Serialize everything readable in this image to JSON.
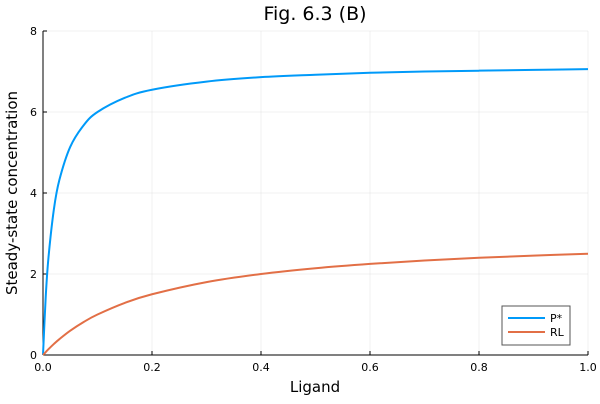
{
  "chart_data": {
    "type": "line",
    "title": "Fig. 6.3 (B)",
    "xlabel": "Ligand",
    "ylabel": "Steady-state concentration",
    "xlim": [
      0,
      1
    ],
    "ylim": [
      0,
      8
    ],
    "xticks": [
      0,
      0.2,
      0.4,
      0.6,
      0.8,
      1.0
    ],
    "xtick_labels": [
      "0.0",
      "0.2",
      "0.4",
      "0.6",
      "0.8",
      "1.0"
    ],
    "yticks": [
      0,
      2,
      4,
      6,
      8
    ],
    "ytick_labels": [
      "0",
      "2",
      "4",
      "6",
      "8"
    ],
    "grid": true,
    "legend_position": "bottom-right",
    "x": [
      0,
      0.005,
      0.01,
      0.02,
      0.03,
      0.05,
      0.075,
      0.1,
      0.15,
      0.2,
      0.3,
      0.4,
      0.5,
      0.6,
      0.7,
      0.8,
      0.9,
      1.0
    ],
    "series": [
      {
        "name": "P*",
        "color": "#009af9",
        "values": [
          0,
          1.44,
          2.4,
          3.6,
          4.32,
          5.14,
          5.68,
          6.0,
          6.35,
          6.55,
          6.75,
          6.86,
          6.92,
          6.97,
          7.0,
          7.02,
          7.04,
          7.06
        ]
      },
      {
        "name": "RL",
        "color": "#e26f46",
        "values": [
          0,
          0.073,
          0.143,
          0.273,
          0.391,
          0.6,
          0.818,
          1.0,
          1.286,
          1.5,
          1.8,
          2.0,
          2.143,
          2.25,
          2.333,
          2.4,
          2.455,
          2.5
        ]
      }
    ]
  }
}
